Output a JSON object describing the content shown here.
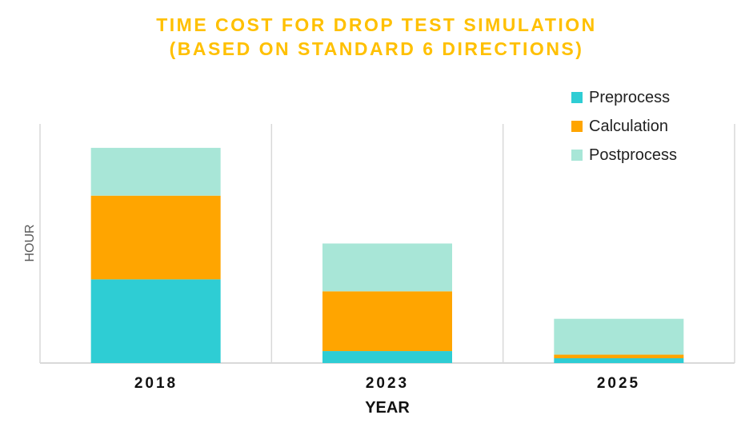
{
  "chart_data": {
    "type": "bar",
    "stacked": true,
    "title": [
      "TIME COST FOR DROP TEST SIMULATION",
      "(BASED ON STANDARD 6 DIRECTIONS)"
    ],
    "xlabel": "YEAR",
    "ylabel": "HOUR",
    "categories": [
      "2018",
      "2023",
      "2025"
    ],
    "ylim": [
      0,
      10
    ],
    "grid": "vertical",
    "legend_position": "top-right",
    "series": [
      {
        "name": "Preprocess",
        "color": "#2ECDD4",
        "values": [
          3.5,
          0.5,
          0.2
        ]
      },
      {
        "name": "Calculation",
        "color": "#FFA500",
        "values": [
          3.5,
          2.5,
          0.15
        ]
      },
      {
        "name": "Postprocess",
        "color": "#A8E6D7",
        "values": [
          2.0,
          2.0,
          1.5
        ]
      }
    ]
  }
}
